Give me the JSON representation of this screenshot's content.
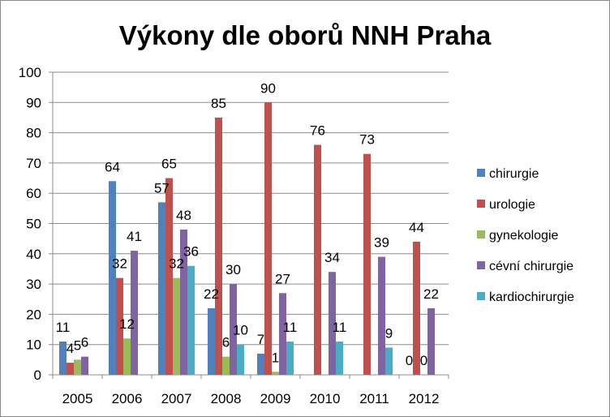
{
  "chart_data": {
    "type": "bar",
    "title": "Výkony dle oborů NNH Praha",
    "xlabel": "",
    "ylabel": "",
    "ylim": [
      0,
      100
    ],
    "yticks": [
      0,
      10,
      20,
      30,
      40,
      50,
      60,
      70,
      80,
      90,
      100
    ],
    "grid": true,
    "legend_position": "right",
    "categories": [
      "2005",
      "2006",
      "2007",
      "2008",
      "2009",
      "2010",
      "2011",
      "2012"
    ],
    "series": [
      {
        "name": "chirurgie",
        "color": "#4f81bd",
        "values": [
          11,
          64,
          57,
          22,
          7,
          null,
          null,
          0
        ]
      },
      {
        "name": "urologie",
        "color": "#c0504d",
        "values": [
          4,
          32,
          65,
          85,
          90,
          76,
          73,
          44
        ]
      },
      {
        "name": "gynekologie",
        "color": "#9bbb59",
        "values": [
          5,
          12,
          32,
          6,
          1,
          null,
          null,
          0
        ]
      },
      {
        "name": "cévní chirurgie",
        "color": "#8064a2",
        "values": [
          6,
          41,
          48,
          30,
          27,
          34,
          39,
          22
        ]
      },
      {
        "name": "kardiochirurgie",
        "color": "#4bacc6",
        "values": [
          null,
          null,
          36,
          10,
          11,
          11,
          9,
          null
        ]
      }
    ]
  }
}
